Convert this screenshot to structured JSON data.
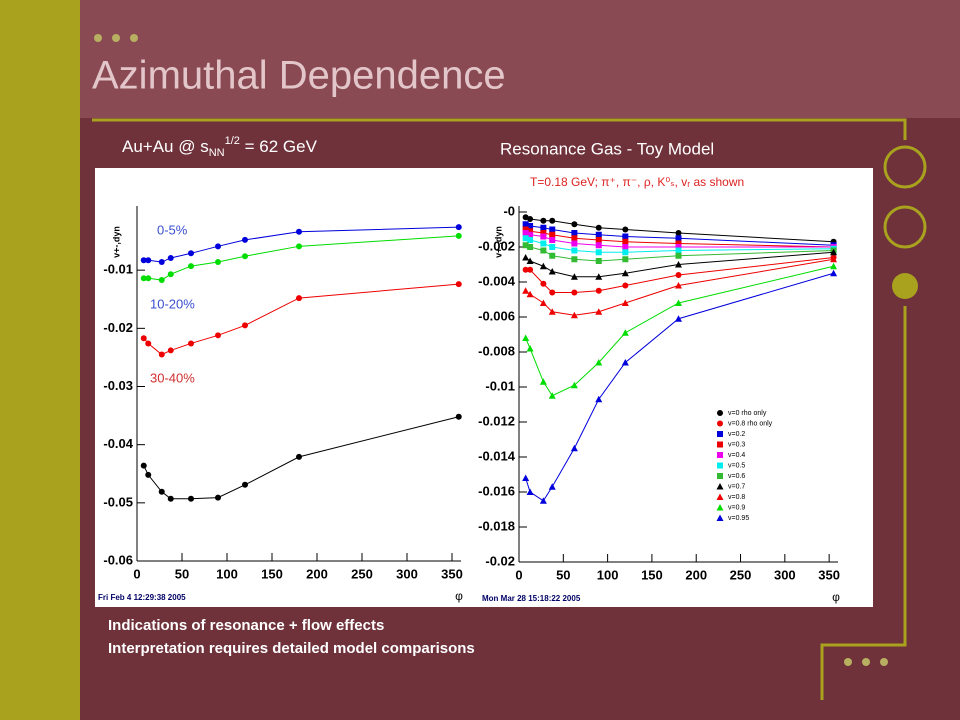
{
  "slide": {
    "title": "Azimuthal Dependence",
    "bullets": [
      "Indications of resonance + flow effects",
      "Interpretation requires detailed model comparisons"
    ]
  },
  "chart_data": [
    {
      "type": "line",
      "title": [
        "Au+Au @ s",
        "NN",
        "1/2",
        " = 62 GeV"
      ],
      "ylabel": "v+-,dyn",
      "xlabel": "φ",
      "footer": "Fri Feb  4 12:29:38 2005",
      "x": [
        7.5,
        12.5,
        27.5,
        37.5,
        60,
        90,
        120,
        180,
        357.5
      ],
      "xlim": [
        0,
        360
      ],
      "xticks": [
        0,
        50,
        100,
        150,
        200,
        250,
        300,
        350
      ],
      "ylim": [
        -0.06,
        0
      ],
      "yticks": [
        -0.06,
        -0.05,
        -0.04,
        -0.03,
        -0.02,
        -0.01
      ],
      "annotations": [
        {
          "text": "0-5%",
          "color": "#3a4fd0"
        },
        {
          "text": "10-20%",
          "color": "#3a4fd0"
        },
        {
          "text": "30-40%",
          "color": "#d03030"
        }
      ],
      "series": [
        {
          "color": "#0000dd",
          "marker": "circle",
          "values": [
            -0.0083,
            -0.0083,
            -0.0086,
            -0.0079,
            -0.0071,
            -0.0059,
            -0.0048,
            -0.0034,
            -0.0026
          ]
        },
        {
          "color": "#00dd00",
          "marker": "circle",
          "values": [
            -0.0114,
            -0.0114,
            -0.0117,
            -0.0107,
            -0.0093,
            -0.0086,
            -0.0076,
            -0.0059,
            -0.0041
          ]
        },
        {
          "color": "#ee0000",
          "marker": "circle",
          "values": [
            -0.0217,
            -0.0226,
            -0.0245,
            -0.0238,
            -0.0226,
            -0.0212,
            -0.0195,
            -0.0148,
            -0.0124
          ]
        },
        {
          "color": "#000000",
          "marker": "circle",
          "values": [
            -0.0436,
            -0.0452,
            -0.0481,
            -0.0493,
            -0.0493,
            -0.0491,
            -0.0469,
            -0.0421,
            -0.0352
          ]
        }
      ]
    },
    {
      "type": "line",
      "title": "Resonance Gas - Toy Model",
      "subtitle": "T=0.18 GeV; π⁺, π⁻, ρ, K⁰ₛ, vᵣ as shown",
      "ylabel": "v+-,dyn",
      "xlabel": "φ",
      "footer": "Mon Mar 28 15:18:22 2005",
      "x": [
        7.5,
        12.5,
        27.5,
        37.5,
        62.5,
        90,
        120,
        180,
        355
      ],
      "xlim": [
        0,
        360
      ],
      "xticks": [
        0,
        50,
        100,
        150,
        200,
        250,
        300,
        350
      ],
      "ylim": [
        -0.02,
        0
      ],
      "yticks": [
        {
          "value": 0,
          "label": "-0"
        },
        -0.002,
        -0.004,
        -0.006,
        -0.008,
        -0.01,
        -0.012,
        -0.014,
        -0.016,
        -0.018,
        -0.02
      ],
      "series": [
        {
          "name": "v=0 rho only",
          "color": "#000000",
          "marker": "circle",
          "values": [
            -0.0003,
            -0.0004,
            -0.0005,
            -0.0005,
            -0.0007,
            -0.0009,
            -0.001,
            -0.0012,
            -0.0017
          ]
        },
        {
          "name": "v=0.8 rho only",
          "color": "#ee0000",
          "marker": "circle",
          "values": [
            -0.0033,
            -0.0033,
            -0.0041,
            -0.0046,
            -0.0046,
            -0.0045,
            -0.0042,
            -0.0036,
            -0.0026
          ]
        },
        {
          "name": "v=0.2",
          "color": "#0000dd",
          "marker": "square",
          "values": [
            -0.0007,
            -0.0008,
            -0.0009,
            -0.001,
            -0.0012,
            -0.0013,
            -0.0014,
            -0.0015,
            -0.0019
          ]
        },
        {
          "name": "v=0.3",
          "color": "#ee0000",
          "marker": "square",
          "values": [
            -0.001,
            -0.0011,
            -0.0012,
            -0.0013,
            -0.0015,
            -0.0016,
            -0.0017,
            -0.0018,
            -0.002
          ]
        },
        {
          "name": "v=0.4",
          "color": "#ee00ee",
          "marker": "square",
          "values": [
            -0.0012,
            -0.0013,
            -0.0014,
            -0.0016,
            -0.0018,
            -0.0019,
            -0.002,
            -0.002,
            -0.002
          ]
        },
        {
          "name": "v=0.5",
          "color": "#00eeee",
          "marker": "square",
          "values": [
            -0.0015,
            -0.0016,
            -0.0018,
            -0.002,
            -0.0022,
            -0.0023,
            -0.0023,
            -0.0022,
            -0.0021
          ]
        },
        {
          "name": "v=0.6",
          "color": "#33bb33",
          "marker": "square",
          "values": [
            -0.0019,
            -0.002,
            -0.0022,
            -0.0025,
            -0.0027,
            -0.0028,
            -0.0027,
            -0.0025,
            -0.0022
          ]
        },
        {
          "name": "v=0.7",
          "color": "#000000",
          "marker": "triangle",
          "values": [
            -0.0026,
            -0.0028,
            -0.0031,
            -0.0034,
            -0.0037,
            -0.0037,
            -0.0035,
            -0.003,
            -0.0023
          ]
        },
        {
          "name": "v=0.8",
          "color": "#ee0000",
          "marker": "triangle",
          "values": [
            -0.0045,
            -0.0047,
            -0.0052,
            -0.0057,
            -0.0059,
            -0.0057,
            -0.0052,
            -0.0042,
            -0.0027
          ]
        },
        {
          "name": "v=0.9",
          "color": "#00dd00",
          "marker": "triangle",
          "values": [
            -0.0072,
            -0.0078,
            -0.0097,
            -0.0105,
            -0.0099,
            -0.0086,
            -0.0069,
            -0.0052,
            -0.0031
          ]
        },
        {
          "name": "v=0.95",
          "color": "#0000dd",
          "marker": "triangle",
          "values": [
            -0.0152,
            -0.016,
            -0.0165,
            -0.0157,
            -0.0135,
            -0.0107,
            -0.0086,
            -0.0061,
            -0.0035
          ]
        }
      ]
    }
  ]
}
